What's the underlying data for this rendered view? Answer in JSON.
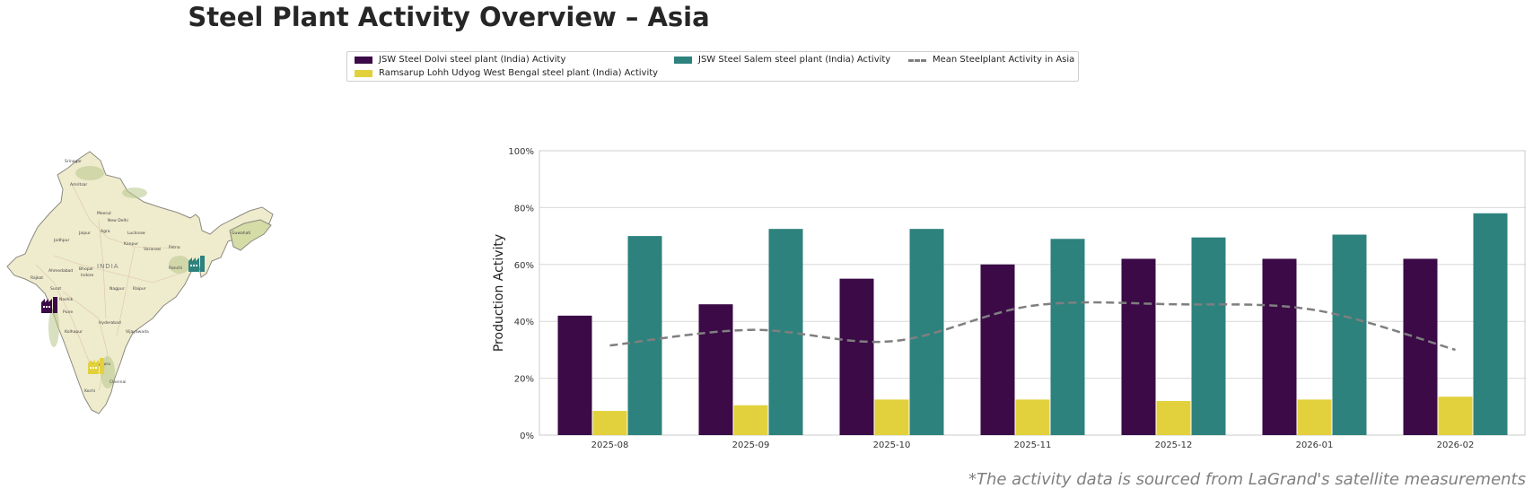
{
  "title": "Steel Plant Activity Overview – Asia",
  "footnote": "*The activity data is sourced from LaGrand's satellite measurements",
  "legend": [
    {
      "label": "JSW Steel Dolvi steel plant (India) Activity",
      "color": "#3b0a47",
      "style": "patch"
    },
    {
      "label": "Ramsarup Lohh Udyog West Bengal steel plant (India) Activity",
      "color": "#e2d13c",
      "style": "patch"
    },
    {
      "label": "JSW Steel Salem steel plant (India) Activity",
      "color": "#2d827d",
      "style": "patch"
    },
    {
      "label": "Mean Steelplant Activity in Asia",
      "color": "#7f7f7f",
      "style": "dashed-line"
    }
  ],
  "map": {
    "country_label": "INDIA",
    "cities": [
      "Srinagar",
      "Amritsar",
      "Meerut",
      "New Delhi",
      "Jaipur",
      "Agra",
      "Lucknow",
      "Kanpur",
      "Varanasi",
      "Patna",
      "Guwahati",
      "Jodhpur",
      "Ahmedabad",
      "Bhopal",
      "Indore",
      "Rajkot",
      "Surat",
      "Nagpur",
      "Ranchi",
      "Raipur",
      "Nashik",
      "Pune",
      "Hyderabad",
      "Kolhapur",
      "Vijayawada",
      "Bengaluru",
      "Chennai",
      "Kochi"
    ],
    "markers": [
      {
        "name": "factory-dolvi",
        "color": "#3b0a47"
      },
      {
        "name": "factory-west-bengal",
        "color": "#2d827d"
      },
      {
        "name": "factory-salem",
        "color": "#e2d13c"
      }
    ]
  },
  "chart_data": {
    "type": "bar",
    "categories": [
      "2025-08",
      "2025-09",
      "2025-10",
      "2025-11",
      "2025-12",
      "2026-01",
      "2026-02"
    ],
    "series": [
      {
        "name": "JSW Steel Dolvi steel plant (India) Activity",
        "color": "#3b0a47",
        "values": [
          42,
          46,
          55,
          60,
          62,
          62,
          62
        ]
      },
      {
        "name": "Ramsarup Lohh Udyog West Bengal steel plant (India) Activity",
        "color": "#e2d13c",
        "values": [
          8.5,
          10.5,
          12.5,
          12.5,
          12,
          12.5,
          13.5
        ]
      },
      {
        "name": "JSW Steel Salem steel plant (India) Activity",
        "color": "#2d827d",
        "values": [
          70,
          72.5,
          72.5,
          69,
          69.5,
          70.5,
          78
        ]
      }
    ],
    "line": {
      "name": "Mean Steelplant Activity in Asia",
      "color": "#7f7f7f",
      "style": "dashed",
      "values": [
        31.5,
        37,
        33,
        45.5,
        46,
        44,
        30
      ]
    },
    "ylabel": "Production Activity",
    "xlabel": "",
    "ylim": [
      0,
      100
    ],
    "yticks": [
      "0%",
      "20%",
      "40%",
      "60%",
      "80%",
      "100%"
    ],
    "grid": true,
    "legend_position": "top-center"
  }
}
